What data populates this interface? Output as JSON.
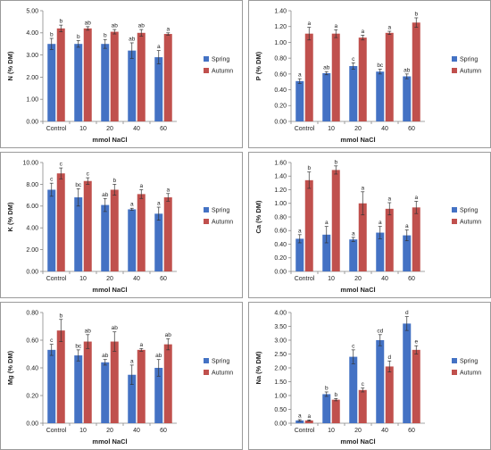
{
  "colors": {
    "spring": "#4472C4",
    "autumn": "#C0504D"
  },
  "chart_data": [
    {
      "type": "bar",
      "categories": [
        "Control",
        "10",
        "20",
        "40",
        "60"
      ],
      "xlabel": "mmol NaCl",
      "ylabel": "N (% DM)",
      "ylim": [
        0,
        5
      ],
      "yticks": [
        "0.00",
        "1.00",
        "2.00",
        "3.00",
        "4.00",
        "5.00"
      ],
      "grid": false,
      "legend_position": "right",
      "series": [
        {
          "name": "Spring",
          "values": [
            3.5,
            3.5,
            3.5,
            3.2,
            2.9
          ],
          "errors": [
            0.25,
            0.15,
            0.2,
            0.35,
            0.3
          ],
          "labels": [
            "b",
            "b",
            "b",
            "ab",
            "a"
          ]
        },
        {
          "name": "Autumn",
          "values": [
            4.2,
            4.2,
            4.05,
            4.0,
            3.95
          ],
          "errors": [
            0.15,
            0.08,
            0.1,
            0.15,
            0.05
          ],
          "labels": [
            "b",
            "ab",
            "ab",
            "ab",
            "a"
          ]
        }
      ]
    },
    {
      "type": "bar",
      "categories": [
        "Control",
        "10",
        "20",
        "40",
        "60"
      ],
      "xlabel": "mmol NaCl",
      "ylabel": "P (% DM)",
      "ylim": [
        0,
        1.4
      ],
      "yticks": [
        "0.00",
        "0.20",
        "0.40",
        "0.60",
        "0.80",
        "1.00",
        "1.20",
        "1.40"
      ],
      "grid": false,
      "legend_position": "right",
      "series": [
        {
          "name": "Spring",
          "values": [
            0.51,
            0.61,
            0.7,
            0.63,
            0.57
          ],
          "errors": [
            0.03,
            0.02,
            0.04,
            0.03,
            0.03
          ],
          "labels": [
            "a",
            "ab",
            "c",
            "bc",
            "ab"
          ]
        },
        {
          "name": "Autumn",
          "values": [
            1.11,
            1.11,
            1.06,
            1.12,
            1.25
          ],
          "errors": [
            0.08,
            0.05,
            0.03,
            0.02,
            0.06
          ],
          "labels": [
            "a",
            "a",
            "a",
            "a",
            "b"
          ]
        }
      ]
    },
    {
      "type": "bar",
      "categories": [
        "Control",
        "10",
        "20",
        "40",
        "60"
      ],
      "xlabel": "mmol NaCl",
      "ylabel": "K (% DM)",
      "ylim": [
        0,
        10
      ],
      "yticks": [
        "0.00",
        "2.00",
        "4.00",
        "6.00",
        "8.00",
        "10.00"
      ],
      "grid": false,
      "legend_position": "right",
      "series": [
        {
          "name": "Spring",
          "values": [
            7.5,
            6.8,
            6.1,
            5.7,
            5.3
          ],
          "errors": [
            0.6,
            0.8,
            0.6,
            0.1,
            0.6
          ],
          "labels": [
            "c",
            "bc",
            "ab",
            "a",
            "a"
          ]
        },
        {
          "name": "Autumn",
          "values": [
            9.0,
            8.3,
            7.5,
            7.1,
            6.8
          ],
          "errors": [
            0.5,
            0.3,
            0.5,
            0.4,
            0.35
          ],
          "labels": [
            "c",
            "c",
            "b",
            "a",
            "a"
          ]
        }
      ]
    },
    {
      "type": "bar",
      "categories": [
        "Control",
        "10",
        "20",
        "40",
        "60"
      ],
      "xlabel": "mmol NaCl",
      "ylabel": "Ca (% DM)",
      "ylim": [
        0,
        1.6
      ],
      "yticks": [
        "0.00",
        "0.20",
        "0.40",
        "0.60",
        "0.80",
        "1.00",
        "1.20",
        "1.40",
        "1.60"
      ],
      "grid": false,
      "legend_position": "right",
      "series": [
        {
          "name": "Spring",
          "values": [
            0.48,
            0.54,
            0.47,
            0.57,
            0.53
          ],
          "errors": [
            0.06,
            0.12,
            0.03,
            0.09,
            0.08
          ],
          "labels": [
            "a",
            "a",
            "a",
            "a",
            "a"
          ]
        },
        {
          "name": "Autumn",
          "values": [
            1.34,
            1.49,
            1.0,
            0.92,
            0.94
          ],
          "errors": [
            0.12,
            0.06,
            0.17,
            0.09,
            0.09
          ],
          "labels": [
            "b",
            "b",
            "a",
            "a",
            "a"
          ]
        }
      ]
    },
    {
      "type": "bar",
      "categories": [
        "Control",
        "10",
        "20",
        "40",
        "60"
      ],
      "xlabel": "mmol NaCl",
      "ylabel": "Mg (% DM)",
      "ylim": [
        0,
        0.8
      ],
      "yticks": [
        "0.00",
        "0.20",
        "0.40",
        "0.60",
        "0.80"
      ],
      "grid": false,
      "legend_position": "right",
      "series": [
        {
          "name": "Spring",
          "values": [
            0.53,
            0.49,
            0.44,
            0.35,
            0.4
          ],
          "errors": [
            0.04,
            0.04,
            0.02,
            0.07,
            0.06
          ],
          "labels": [
            "c",
            "bc",
            "ab",
            "a",
            "ab"
          ]
        },
        {
          "name": "Autumn",
          "values": [
            0.67,
            0.59,
            0.59,
            0.53,
            0.57
          ],
          "errors": [
            0.08,
            0.05,
            0.07,
            0.01,
            0.04
          ],
          "labels": [
            "b",
            "ab",
            "ab",
            "a",
            "ab"
          ]
        }
      ]
    },
    {
      "type": "bar",
      "categories": [
        "Control",
        "10",
        "20",
        "40",
        "60"
      ],
      "xlabel": "mmol NaCl",
      "ylabel": "Na (% DM)",
      "ylim": [
        0,
        4
      ],
      "yticks": [
        "0.00",
        "0.50",
        "1.00",
        "1.50",
        "2.00",
        "2.50",
        "3.00",
        "3.50",
        "4.00"
      ],
      "grid": false,
      "legend_position": "right",
      "series": [
        {
          "name": "Spring",
          "values": [
            0.1,
            1.05,
            2.4,
            3.0,
            3.6
          ],
          "errors": [
            0.03,
            0.08,
            0.25,
            0.2,
            0.25
          ],
          "labels": [
            "a",
            "b",
            "c",
            "cd",
            "d"
          ]
        },
        {
          "name": "Autumn",
          "values": [
            0.1,
            0.85,
            1.2,
            2.05,
            2.65
          ],
          "errors": [
            0.02,
            0.04,
            0.07,
            0.2,
            0.15
          ],
          "labels": [
            "a",
            "b",
            "c",
            "d",
            "e"
          ]
        }
      ]
    }
  ]
}
